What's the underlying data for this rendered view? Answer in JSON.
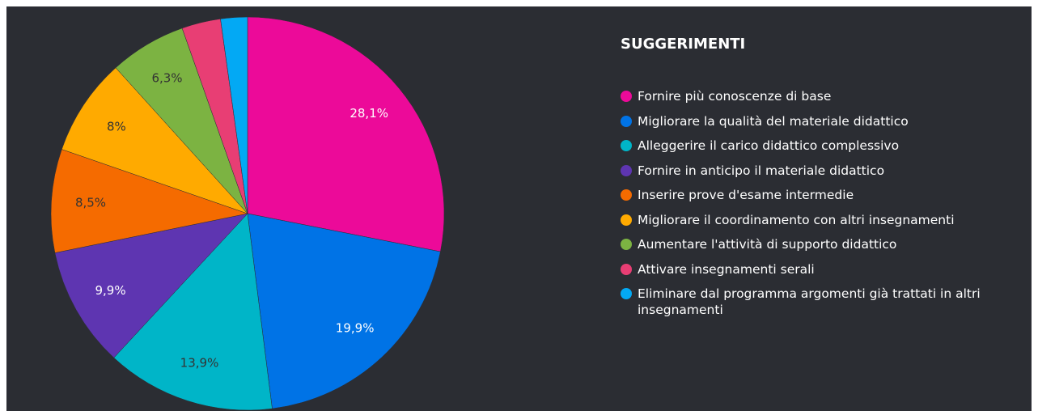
{
  "chart_data": {
    "type": "pie",
    "title": "SUGGERIMENTI",
    "categories": [
      "Fornire più conoscenze di base",
      "Migliorare la qualità del materiale didattico",
      "Alleggerire il carico didattico complessivo",
      "Fornire in anticipo il materiale didattico",
      "Inserire prove d'esame intermedie",
      "Migliorare il coordinamento con altri insegnamenti",
      "Aumentare l'attività di supporto didattico",
      "Attivare insegnamenti serali",
      "Eliminare dal programma argomenti già trattati in altri insegnamenti"
    ],
    "values": [
      28.1,
      19.9,
      13.9,
      9.9,
      8.5,
      8,
      6.3,
      3.2,
      2.2
    ],
    "value_labels": [
      "28,1%",
      "19,9%",
      "13,9%",
      "9,9%",
      "8,5%",
      "8%",
      "6,3%",
      null,
      null
    ],
    "colors": [
      "#ec0a99",
      "#0073e6",
      "#00b5c8",
      "#5e35b1",
      "#f56b00",
      "#ffaa00",
      "#7cb342",
      "#e83e74",
      "#03a9f4"
    ],
    "legend": "right"
  }
}
